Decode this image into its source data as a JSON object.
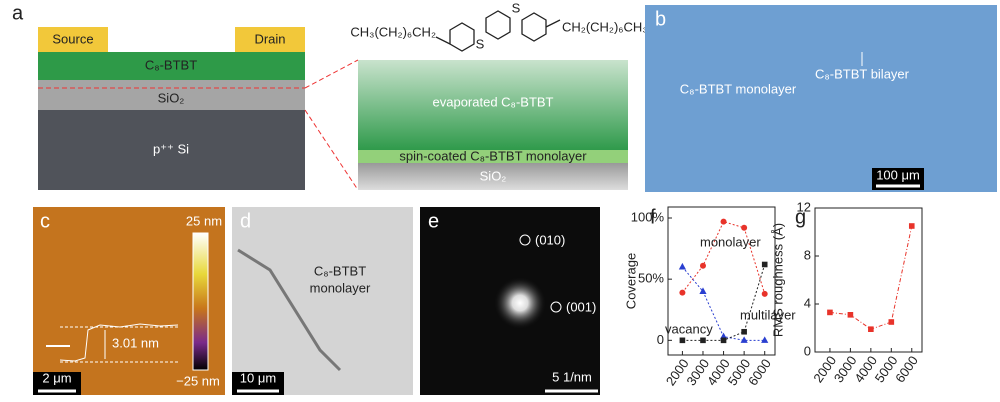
{
  "panel_labels": [
    "a",
    "b",
    "c",
    "d",
    "e",
    "f",
    "g"
  ],
  "a": {
    "source": "Source",
    "drain": "Drain",
    "channel": "C₈-BTBT",
    "oxide": "SiO₂",
    "substrate": "p⁺⁺ Si",
    "formula_left": "CH₃(CH₂)₆CH₂",
    "formula_right": "CH₂(CH₂)₆CH₃",
    "sulfur": [
      "S",
      "S"
    ],
    "evaporated": "evaporated C₈-BTBT",
    "spin_coated": "spin-coated C₈-BTBT monolayer",
    "oxide_zoom": "SiO₂"
  },
  "b": {
    "monolayer": "C₈-BTBT monolayer",
    "bilayer": "C₈-BTBT bilayer",
    "scale": "100 μm"
  },
  "c": {
    "cbar_max": "25 nm",
    "cbar_min": "−25 nm",
    "step": "3.01 nm",
    "scale": "2 μm"
  },
  "d": {
    "label_lines": [
      "C₈-BTBT",
      "monolayer"
    ],
    "scale": "10 μm"
  },
  "e": {
    "spot1": "(010)",
    "spot2": "(001)",
    "scale": "5 1/nm"
  },
  "chart_data": [
    {
      "type": "line",
      "y_label": "Coverage",
      "x": [
        2000,
        3000,
        4000,
        5000,
        6000
      ],
      "xlim": [
        1300,
        6500
      ],
      "xticks": [
        2000,
        3000,
        4000,
        5000,
        6000
      ],
      "ylim": [
        -12,
        109
      ],
      "yticks": [
        0,
        {
          "value": 50,
          "label": "50%"
        },
        {
          "value": 100,
          "label": "100%"
        }
      ],
      "series": [
        {
          "name": "monolayer",
          "color": "#e8332a",
          "marker": "circle",
          "values": [
            39,
            61,
            97,
            92,
            38
          ]
        },
        {
          "name": "multilayer",
          "color": "#2a3fd0",
          "marker": "triangle",
          "values": [
            60,
            40,
            3,
            0,
            0
          ]
        },
        {
          "name": "vacancy",
          "color": "#222222",
          "marker": "square",
          "values": [
            0,
            0,
            0,
            7,
            62
          ]
        }
      ]
    },
    {
      "type": "line",
      "y_label": "RMS roughness (Å)",
      "x": [
        2000,
        3000,
        4000,
        5000,
        6000
      ],
      "xlim": [
        1270,
        6500
      ],
      "xticks": [
        2000,
        3000,
        4000,
        5000,
        6000
      ],
      "ylim": [
        0,
        12
      ],
      "yticks": [
        0,
        4,
        8,
        12
      ],
      "color": "#e8332a",
      "marker": "square",
      "values": [
        3.3,
        3.1,
        1.9,
        2.5,
        10.5
      ]
    }
  ]
}
